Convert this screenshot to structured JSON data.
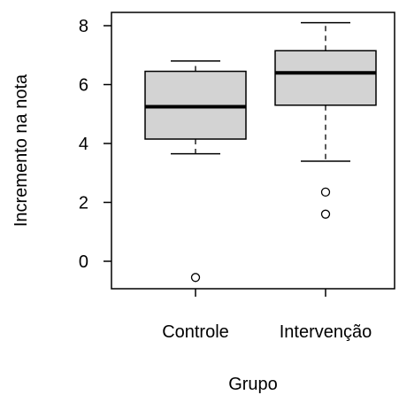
{
  "chart_data": {
    "type": "boxplot",
    "title": "",
    "xlabel": "Grupo",
    "ylabel": "Incremento na nota",
    "ylim": [
      -0.9,
      8.5
    ],
    "yticks": [
      0,
      2,
      4,
      6,
      8
    ],
    "categories": [
      "Controle",
      "Intervenção"
    ],
    "series": [
      {
        "category": "Controle",
        "whisker_low": 3.65,
        "q1": 4.15,
        "median": 5.25,
        "q3": 6.45,
        "whisker_high": 6.8,
        "outliers": [
          -0.55
        ]
      },
      {
        "category": "Intervenção",
        "whisker_low": 3.4,
        "q1": 5.3,
        "median": 6.4,
        "q3": 7.15,
        "whisker_high": 8.1,
        "outliers": [
          2.35,
          1.6
        ]
      }
    ],
    "box_fill": "#d3d3d3",
    "grid": false,
    "legend": "none"
  }
}
